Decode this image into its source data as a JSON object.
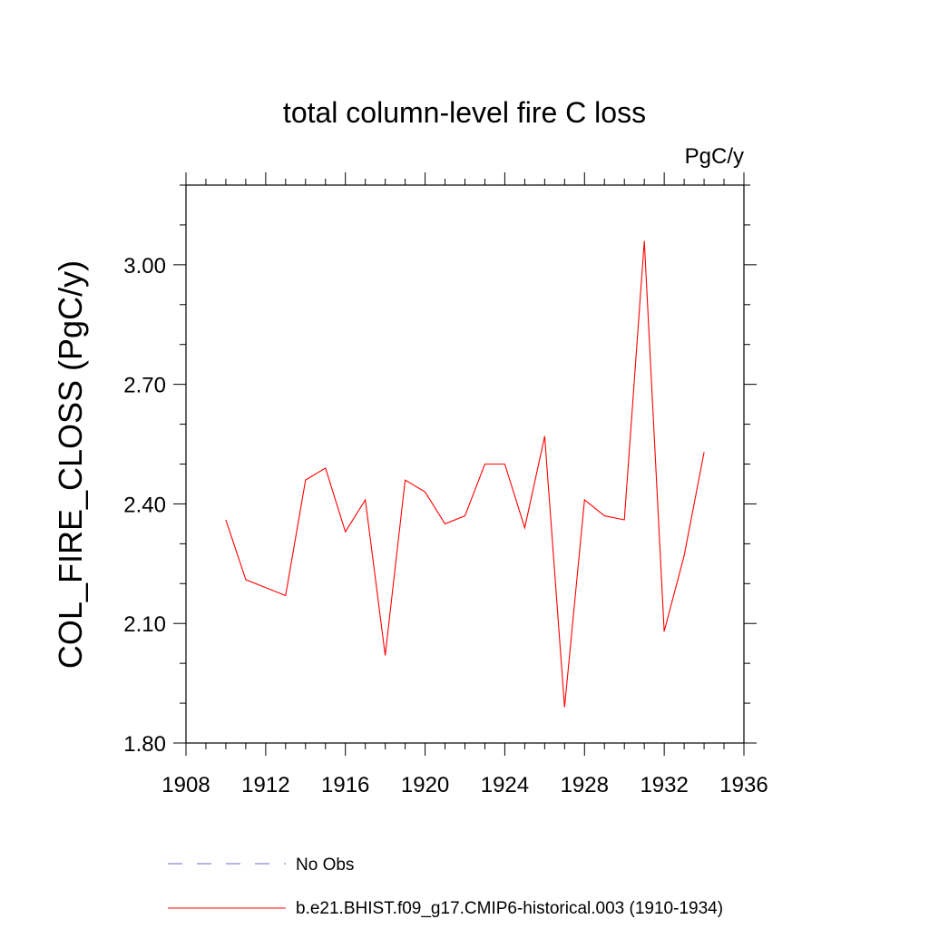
{
  "chart_data": {
    "type": "line",
    "title": "total column-level fire C loss",
    "units": "PgC/y",
    "ylabel": "COL_FIRE_CLOSS  (PgC/y)",
    "xlabel": "",
    "xlim": [
      1908,
      1936
    ],
    "ylim": [
      1.8,
      3.2
    ],
    "x_ticks": [
      1908,
      1912,
      1916,
      1920,
      1924,
      1928,
      1932,
      1936
    ],
    "x_tick_labels": [
      "1908",
      "1912",
      "1916",
      "1920",
      "1924",
      "1928",
      "1932",
      "1936"
    ],
    "y_ticks": [
      1.8,
      2.1,
      2.4,
      2.7,
      3.0
    ],
    "y_tick_labels": [
      "1.80",
      "2.10",
      "2.40",
      "2.70",
      "3.00"
    ],
    "grid": false,
    "legend_position": "bottom",
    "series": [
      {
        "name": "b.e21.BHIST.f09_g17.CMIP6-historical.003 (1910-1934)",
        "color": "#ff0000",
        "style": "solid",
        "x": [
          1910,
          1911,
          1912,
          1913,
          1914,
          1915,
          1916,
          1917,
          1918,
          1919,
          1920,
          1921,
          1922,
          1923,
          1924,
          1925,
          1926,
          1927,
          1928,
          1929,
          1930,
          1931,
          1932,
          1933,
          1934
        ],
        "values": [
          2.36,
          2.21,
          2.19,
          2.17,
          2.46,
          2.49,
          2.33,
          2.41,
          2.02,
          2.46,
          2.43,
          2.35,
          2.37,
          2.5,
          2.5,
          2.34,
          2.57,
          1.89,
          2.41,
          2.37,
          2.36,
          3.06,
          2.08,
          2.27,
          2.53
        ]
      }
    ],
    "legend": [
      {
        "label": "No Obs",
        "color": "#6b6bc7",
        "style": "dashed"
      },
      {
        "label": "b.e21.BHIST.f09_g17.CMIP6-historical.003 (1910-1934)",
        "color": "#ff0000",
        "style": "solid"
      }
    ]
  }
}
